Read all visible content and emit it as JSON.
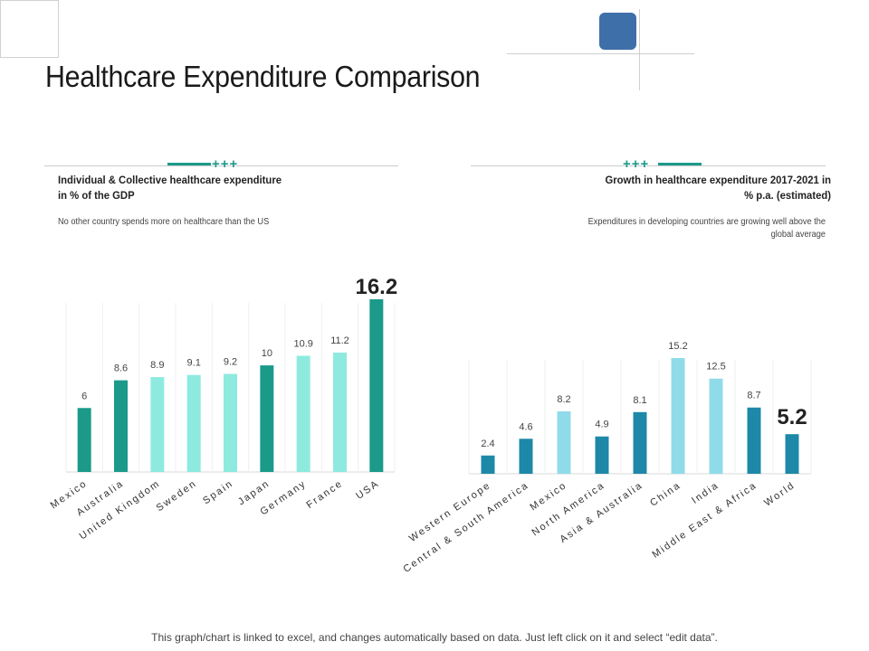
{
  "title": "Healthcare Expenditure Comparison",
  "left_panel": {
    "icon": "+++",
    "heading_line1": "Individual & Collective healthcare expenditure",
    "heading_line2": "in % of the GDP",
    "subtitle": "No other country spends more on healthcare than the US"
  },
  "right_panel": {
    "icon": "+++",
    "heading_line1": "Growth in healthcare expenditure 2017-2021 in",
    "heading_line2": "% p.a. (estimated)",
    "subtitle_line1": "Expenditures in developing countries are growing well above the",
    "subtitle_line2": "global average"
  },
  "footer": "This graph/chart is linked to excel, and changes automatically based on data. Just left click on it and select “edit data”.",
  "colors": {
    "teal_dark": "#1b9a8a",
    "teal_light": "#8eeadf",
    "blue_dark": "#1e88a8",
    "blue_light": "#90dbea"
  },
  "chart_data": [
    {
      "type": "bar",
      "title": "Individual & Collective healthcare expenditure in % of the GDP",
      "categories": [
        "Mexico",
        "Australia",
        "United Kingdom",
        "Sweden",
        "Spain",
        "Japan",
        "Germany",
        "France",
        "USA"
      ],
      "values": [
        6,
        8.6,
        8.9,
        9.1,
        9.2,
        10,
        10.9,
        11.2,
        16.2
      ],
      "labels": [
        "6",
        "8.6",
        "8.9",
        "9.1",
        "9.2",
        "10",
        "10.9",
        "11.2",
        "16.2"
      ],
      "highlight": [
        false,
        false,
        false,
        false,
        false,
        false,
        false,
        false,
        true
      ],
      "bar_colors": [
        "#1b9a8a",
        "#1b9a8a",
        "#8eeadf",
        "#8eeadf",
        "#8eeadf",
        "#1b9a8a",
        "#8eeadf",
        "#8eeadf",
        "#1b9a8a"
      ],
      "ylim": [
        0,
        16.2
      ],
      "xlabel": "",
      "ylabel": "",
      "grid": true
    },
    {
      "type": "bar",
      "title": "Growth in healthcare expenditure 2017-2021 in % p.a. (estimated)",
      "categories": [
        "Western Europe",
        "Central & South America",
        "Mexico",
        "North America",
        "Asia & Australia",
        "China",
        "India",
        "Middle East & Africa",
        "World"
      ],
      "values": [
        2.4,
        4.6,
        8.2,
        4.9,
        8.1,
        15.2,
        12.5,
        8.7,
        5.2
      ],
      "labels": [
        "2.4",
        "4.6",
        "8.2",
        "4.9",
        "8.1",
        "15.2",
        "12.5",
        "8.7",
        "5.2"
      ],
      "highlight": [
        false,
        false,
        false,
        false,
        false,
        false,
        false,
        false,
        true
      ],
      "bar_colors": [
        "#1e88a8",
        "#1e88a8",
        "#90dbea",
        "#1e88a8",
        "#1e88a8",
        "#90dbea",
        "#90dbea",
        "#1e88a8",
        "#1e88a8"
      ],
      "ylim": [
        0,
        15.2
      ],
      "xlabel": "",
      "ylabel": "",
      "grid": true
    }
  ]
}
